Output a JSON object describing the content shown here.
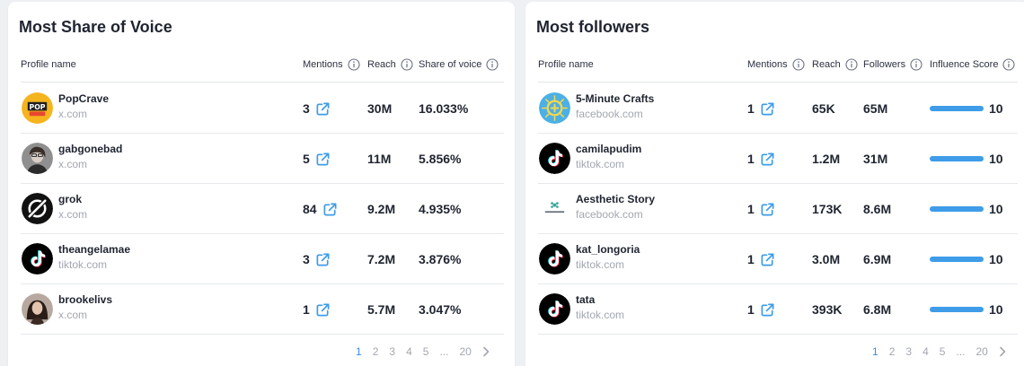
{
  "colors": {
    "accent": "#3e9ce8",
    "active_page": "#3a8de0",
    "muted": "#a2a7b0",
    "tiktok": "#000000"
  },
  "left_card": {
    "title": "Most Share of Voice",
    "columns": {
      "profile": "Profile name",
      "mentions": "Mentions",
      "reach": "Reach",
      "sov": "Share of voice"
    },
    "rows": [
      {
        "name": "PopCrave",
        "source": "x.com",
        "mentions": "3",
        "reach": "30M",
        "sov": "16.033%",
        "avatar": "popcrave-logo"
      },
      {
        "name": "gabgonebad",
        "source": "x.com",
        "mentions": "5",
        "reach": "11M",
        "sov": "5.856%",
        "avatar": "person-photo"
      },
      {
        "name": "grok",
        "source": "x.com",
        "mentions": "84",
        "reach": "9.2M",
        "sov": "4.935%",
        "avatar": "grok-logo"
      },
      {
        "name": "theangelamae",
        "source": "tiktok.com",
        "mentions": "3",
        "reach": "7.2M",
        "sov": "3.876%",
        "avatar": "tiktok-logo"
      },
      {
        "name": "brookelivs",
        "source": "x.com",
        "mentions": "1",
        "reach": "5.7M",
        "sov": "3.047%",
        "avatar": "person-photo"
      }
    ],
    "pagination": {
      "pages": [
        "1",
        "2",
        "3",
        "4",
        "5",
        "...",
        "20"
      ],
      "current": "1"
    }
  },
  "right_card": {
    "title": "Most followers",
    "columns": {
      "profile": "Profile name",
      "mentions": "Mentions",
      "reach": "Reach",
      "followers": "Followers",
      "influence": "Influence Score"
    },
    "rows": [
      {
        "name": "5-Minute Crafts",
        "source": "facebook.com",
        "mentions": "1",
        "reach": "65K",
        "followers": "65M",
        "score": "10",
        "score_fraction": 1.0,
        "avatar": "5-minute-crafts-logo"
      },
      {
        "name": "camilapudim",
        "source": "tiktok.com",
        "mentions": "1",
        "reach": "1.2M",
        "followers": "31M",
        "score": "10",
        "score_fraction": 1.0,
        "avatar": "tiktok-logo"
      },
      {
        "name": "Aesthetic Story",
        "source": "facebook.com",
        "mentions": "1",
        "reach": "173K",
        "followers": "8.6M",
        "score": "10",
        "score_fraction": 1.0,
        "avatar": "aesthetic-story-logo"
      },
      {
        "name": "kat_longoria",
        "source": "tiktok.com",
        "mentions": "1",
        "reach": "3.0M",
        "followers": "6.9M",
        "score": "10",
        "score_fraction": 1.0,
        "avatar": "tiktok-logo"
      },
      {
        "name": "tata",
        "source": "tiktok.com",
        "mentions": "1",
        "reach": "393K",
        "followers": "6.8M",
        "score": "10",
        "score_fraction": 1.0,
        "avatar": "tiktok-logo"
      }
    ],
    "pagination": {
      "pages": [
        "1",
        "2",
        "3",
        "4",
        "5",
        "...",
        "20"
      ],
      "current": "1"
    }
  }
}
